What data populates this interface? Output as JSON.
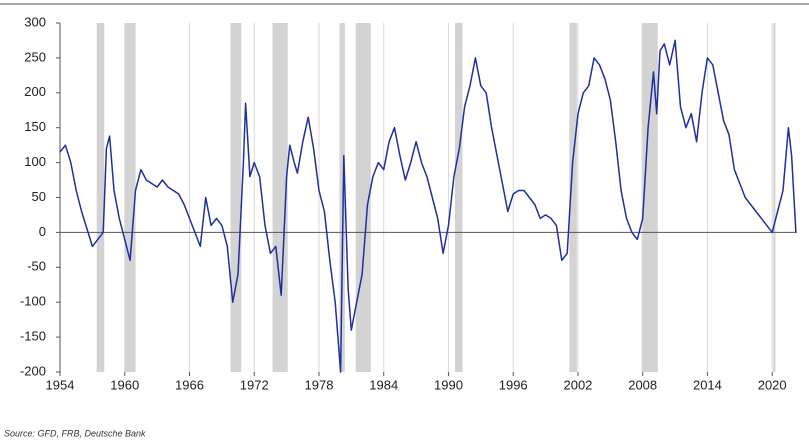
{
  "chart_data": {
    "type": "line",
    "source": "Source: GFD, FRB, Deutsche Bank",
    "xlim": [
      1954,
      2022.3
    ],
    "xticks": [
      1954,
      1960,
      1966,
      1972,
      1978,
      1984,
      1990,
      1996,
      2002,
      2008,
      2014,
      2020
    ],
    "ylim": [
      -200,
      300
    ],
    "yticks": [
      -200,
      -150,
      -100,
      -50,
      0,
      50,
      100,
      150,
      200,
      250,
      300
    ],
    "grid": true,
    "recessions": [
      [
        1957.4,
        1958.1
      ],
      [
        1960.0,
        1961.0
      ],
      [
        1969.8,
        1970.8
      ],
      [
        1973.7,
        1975.1
      ],
      [
        1979.9,
        1980.4
      ],
      [
        1981.4,
        1982.8
      ],
      [
        1990.6,
        1991.3
      ],
      [
        2001.2,
        2001.9
      ],
      [
        2007.9,
        2009.4
      ],
      [
        2020.1,
        2020.3
      ]
    ],
    "recession_color": "#d3d3d3",
    "series": [
      {
        "color": "#1f2fa0",
        "x": [
          1954,
          1954.5,
          1955,
          1955.5,
          1956,
          1956.5,
          1957,
          1957.5,
          1958,
          1958.3,
          1958.6,
          1959,
          1959.5,
          1960,
          1960.5,
          1961,
          1961.5,
          1962,
          1962.5,
          1963,
          1963.5,
          1964,
          1964.5,
          1965,
          1965.5,
          1966,
          1966.5,
          1967,
          1967.5,
          1968,
          1968.5,
          1969,
          1969.5,
          1970,
          1970.5,
          1971,
          1971.2,
          1971.6,
          1972,
          1972.5,
          1973,
          1973.5,
          1974,
          1974.5,
          1975,
          1975.3,
          1975.7,
          1976,
          1976.5,
          1977,
          1977.5,
          1978,
          1978.5,
          1979,
          1979.5,
          1980,
          1980.3,
          1980.7,
          1981,
          1981.5,
          1982,
          1982.5,
          1983,
          1983.5,
          1984,
          1984.5,
          1985,
          1985.5,
          1986,
          1986.5,
          1987,
          1987.5,
          1988,
          1988.5,
          1989,
          1989.5,
          1990,
          1990.5,
          1991,
          1991.5,
          1992,
          1992.5,
          1993,
          1993.5,
          1994,
          1994.5,
          1995,
          1995.5,
          1996,
          1996.5,
          1997,
          1997.5,
          1998,
          1998.5,
          1999,
          1999.5,
          2000,
          2000.5,
          2001,
          2001.5,
          2002,
          2002.5,
          2003,
          2003.5,
          2004,
          2004.5,
          2005,
          2005.5,
          2006,
          2006.5,
          2007,
          2007.5,
          2008,
          2008.5,
          2009,
          2009.3,
          2009.6,
          2010,
          2010.5,
          2011,
          2011.5,
          2012,
          2012.5,
          2013,
          2013.5,
          2014,
          2014.5,
          2015,
          2015.5,
          2016,
          2016.5,
          2017,
          2017.5,
          2018,
          2018.5,
          2019,
          2019.5,
          2020,
          2020.5,
          2021,
          2021.5,
          2021.8,
          2022.2
        ],
        "values": [
          115,
          125,
          100,
          60,
          30,
          5,
          -20,
          -10,
          0,
          120,
          138,
          60,
          20,
          -10,
          -40,
          60,
          90,
          75,
          70,
          65,
          75,
          65,
          60,
          55,
          40,
          20,
          0,
          -20,
          50,
          10,
          20,
          10,
          -20,
          -100,
          -60,
          100,
          185,
          80,
          100,
          80,
          10,
          -30,
          -20,
          -90,
          80,
          125,
          100,
          85,
          130,
          165,
          120,
          60,
          30,
          -40,
          -100,
          -200,
          110,
          -80,
          -140,
          -100,
          -60,
          40,
          80,
          100,
          90,
          130,
          150,
          110,
          75,
          100,
          130,
          100,
          80,
          50,
          20,
          -30,
          10,
          80,
          120,
          180,
          210,
          250,
          210,
          200,
          150,
          110,
          70,
          30,
          55,
          60,
          60,
          50,
          40,
          20,
          25,
          20,
          10,
          -40,
          -30,
          100,
          170,
          200,
          210,
          250,
          240,
          220,
          190,
          130,
          60,
          20,
          0,
          -10,
          20,
          150,
          230,
          170,
          260,
          270,
          240,
          275,
          180,
          150,
          170,
          130,
          200,
          250,
          240,
          200,
          160,
          140,
          90,
          70,
          50,
          40,
          30,
          20,
          10,
          0,
          30,
          60,
          150,
          110,
          0
        ]
      }
    ]
  }
}
